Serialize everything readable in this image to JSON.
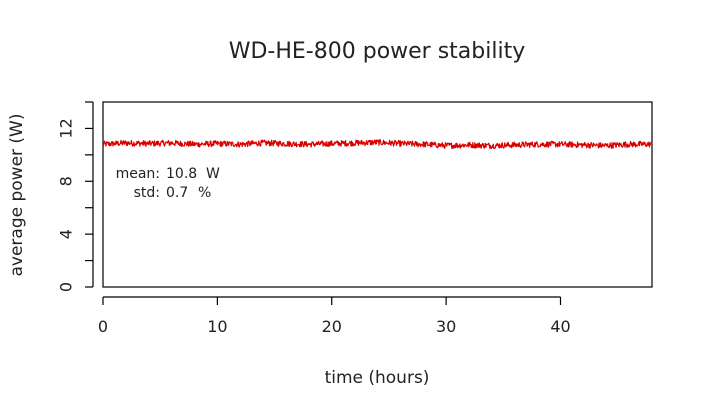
{
  "chart_data": {
    "type": "line",
    "title": "WD-HE-800 power stability",
    "xlabel": "time (hours)",
    "ylabel": "average power (W)",
    "xlim": [
      0,
      48
    ],
    "ylim": [
      0,
      14
    ],
    "xticks": [
      0,
      10,
      20,
      30,
      40
    ],
    "yticks": [
      0,
      2,
      4,
      6,
      8,
      10,
      12,
      14
    ],
    "ytick_labels": [
      {
        "value": 0,
        "label": "0"
      },
      {
        "value": 4,
        "label": "4"
      },
      {
        "value": 8,
        "label": "8"
      },
      {
        "value": 12,
        "label": "12"
      }
    ],
    "grid": false,
    "legend": "none",
    "series": [
      {
        "color": "#d90000",
        "mean_level": 10.8,
        "x": [
          0,
          2,
          4,
          6,
          8,
          10,
          12,
          14,
          16,
          18,
          20,
          22,
          24,
          26,
          28,
          30,
          32,
          34,
          36,
          38,
          40,
          42,
          44,
          46,
          48
        ],
        "values": [
          10.8,
          10.9,
          10.85,
          10.9,
          10.8,
          10.85,
          10.8,
          10.9,
          10.85,
          10.8,
          10.85,
          10.9,
          10.95,
          10.85,
          10.8,
          10.7,
          10.75,
          10.7,
          10.75,
          10.8,
          10.8,
          10.75,
          10.7,
          10.8,
          10.8
        ]
      }
    ],
    "annotations": {
      "mean_label": "mean:",
      "mean_value": "10.8",
      "mean_unit": "W",
      "std_label": "std:",
      "std_value": "0.7",
      "std_unit": "%"
    }
  }
}
